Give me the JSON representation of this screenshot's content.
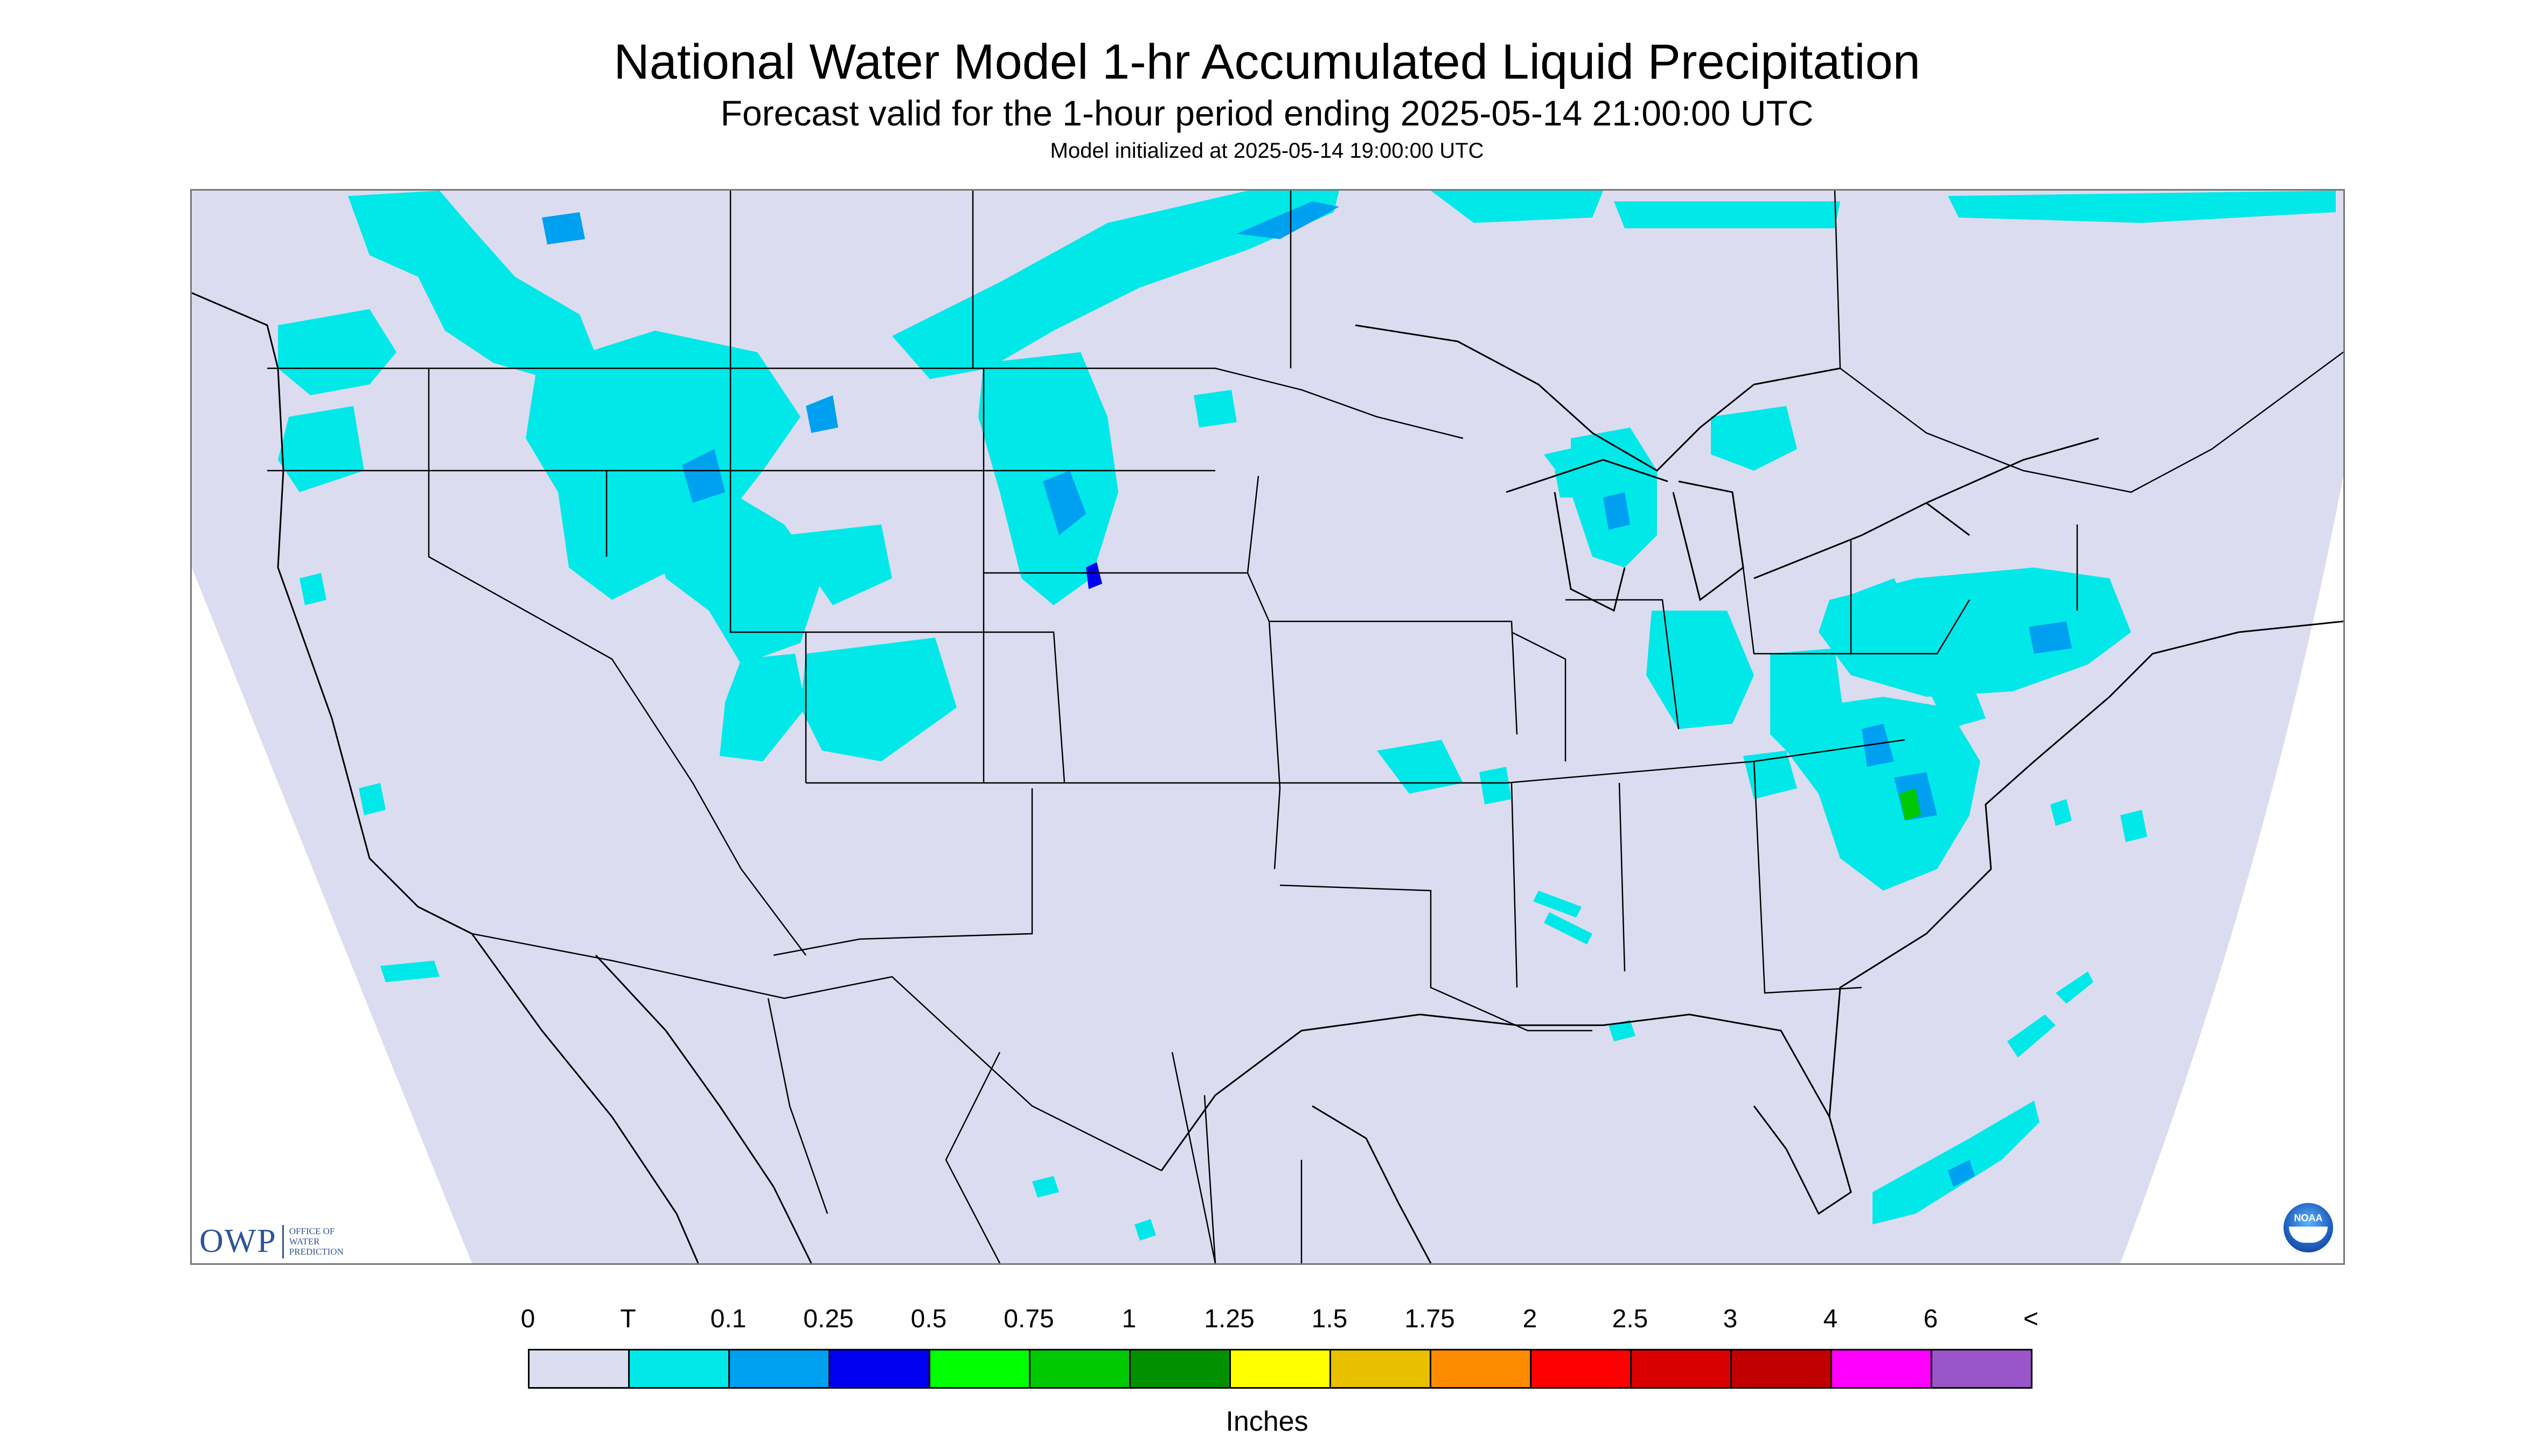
{
  "title": "National Water Model 1-hr Accumulated Liquid Precipitation",
  "subtitle": "Forecast valid for the 1-hour period ending 2025-05-14 21:00:00 UTC",
  "init_text": "Model initialized at 2025-05-14 19:00:00 UTC",
  "logos": {
    "owp_text": "OWP",
    "owp_sub": [
      "OFFICE OF",
      "WATER",
      "PREDICTION"
    ],
    "noaa_text": "NOAA"
  },
  "legend": {
    "labels": [
      "0",
      "T",
      "0.1",
      "0.25",
      "0.5",
      "0.75",
      "1",
      "1.25",
      "1.5",
      "1.75",
      "2",
      "2.5",
      "3",
      "4",
      "6",
      "<"
    ],
    "colors": [
      "#dcdcf0",
      "#00e8e8",
      "#00a0f0",
      "#0000f0",
      "#00ff00",
      "#00c800",
      "#009000",
      "#ffff00",
      "#e8c000",
      "#ff8c00",
      "#ff0000",
      "#d80000",
      "#c00000",
      "#ff00ff",
      "#9955c9"
    ],
    "units": "Inches"
  },
  "map": {
    "domain_fill": "#dcdcf0",
    "outside_fill": "#ffffff",
    "border_color": "#000000",
    "precip_colors": {
      "trace": "#00e8e8",
      "light": "#00a0f0",
      "moderate": "#0000f0",
      "green": "#00c800"
    }
  }
}
